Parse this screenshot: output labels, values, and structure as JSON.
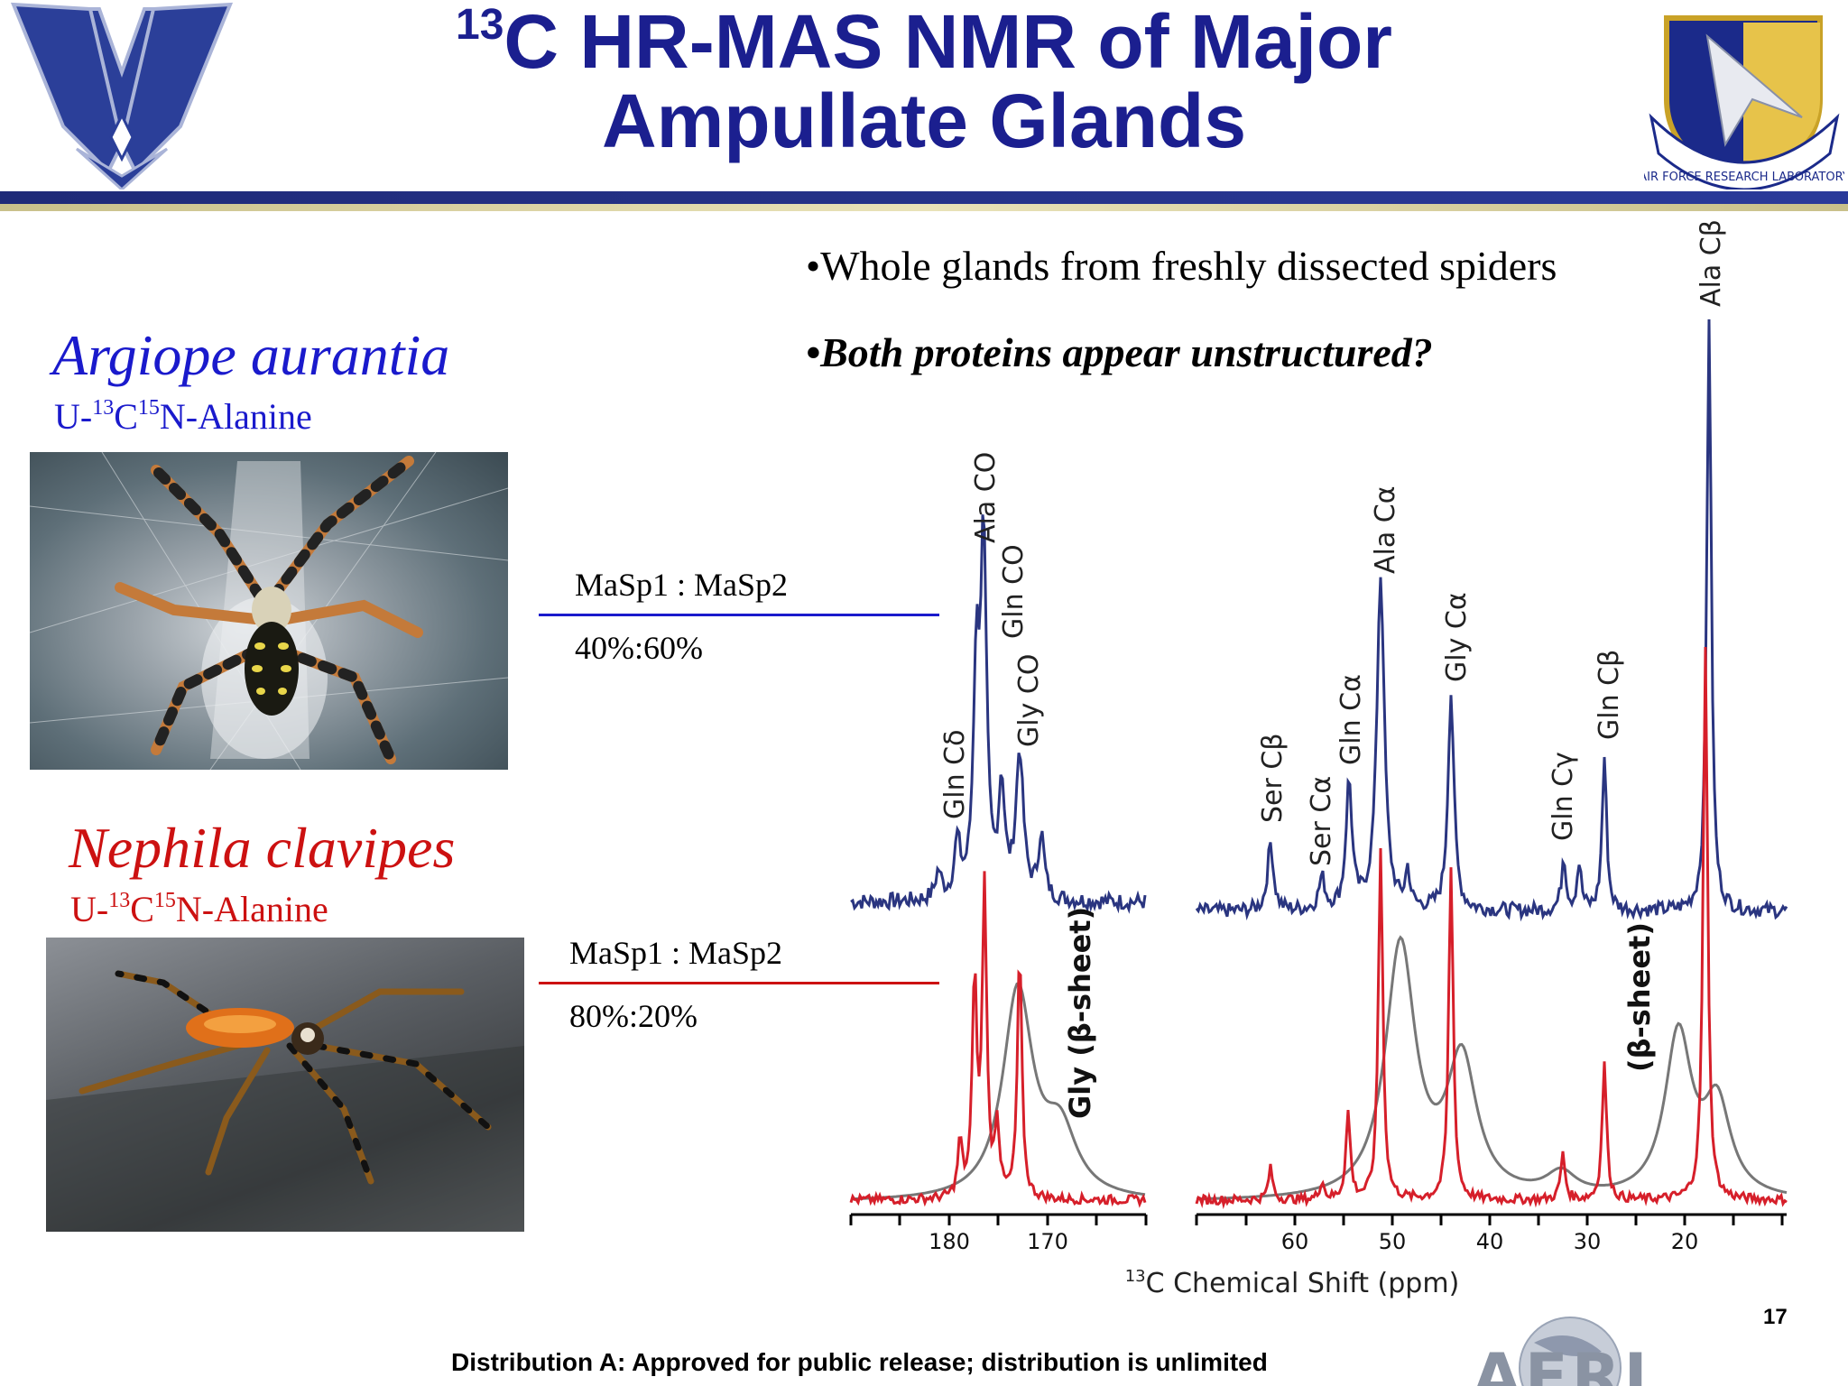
{
  "title": {
    "sup": "13",
    "line1_rest": "C HR-MAS NMR of Major",
    "line2": "Ampullate Glands"
  },
  "bullets": [
    "•Whole glands from freshly dissected spiders",
    "•Both proteins appear unstructured?"
  ],
  "species1": {
    "name": "Argiope aurantia",
    "label_prefix": "U-",
    "label_sup1": "13",
    "label_mid": "C",
    "label_sup2": "15",
    "label_rest": "N-Alanine",
    "color": "#1a1acc",
    "ratio_label": "MaSp1 : MaSp2",
    "ratio_value": "40%:60%"
  },
  "species2": {
    "name": "Nephila clavipes",
    "label_prefix": "U-",
    "label_sup1": "13",
    "label_mid": "C",
    "label_sup2": "15",
    "label_rest": "N-Alanine",
    "color": "#cc1111",
    "ratio_label": "MaSp1 : MaSp2",
    "ratio_value": "80%:20%"
  },
  "spectrum": {
    "peak_labels": {
      "ala_co": "Ala CO",
      "gln_co": "Gln CO",
      "gly_co": "Gly CO",
      "gln_cd": "Gln Cδ",
      "ala_ca": "Ala Cα",
      "gly_ca": "Gly Cα",
      "gln_ca": "Gln Cα",
      "ser_cb": "Ser Cβ",
      "ser_ca": "Ser Cα",
      "gln_cg": "Gln Cγ",
      "gln_cb": "Gln Cβ",
      "ala_cb": "Ala Cβ"
    },
    "annotation_gly": "Gly (β-sheet)",
    "annotation_beta": "(β-sheet)",
    "x_ticks_left": [
      "180",
      "170"
    ],
    "x_ticks_right": [
      "60",
      "50",
      "40",
      "30",
      "20"
    ],
    "xlabel_sup": "13",
    "xlabel_rest": "C Chemical Shift (ppm)",
    "colors": {
      "argiope": "#2a3580",
      "nephila": "#d61f2a",
      "reference": "#777777"
    }
  },
  "page_number": "17",
  "distribution": "Distribution A:  Approved for public release; distribution is unlimited",
  "seal_text": "AIR FORCE RESEARCH LABORATORY",
  "logo_text": "AFRL"
}
